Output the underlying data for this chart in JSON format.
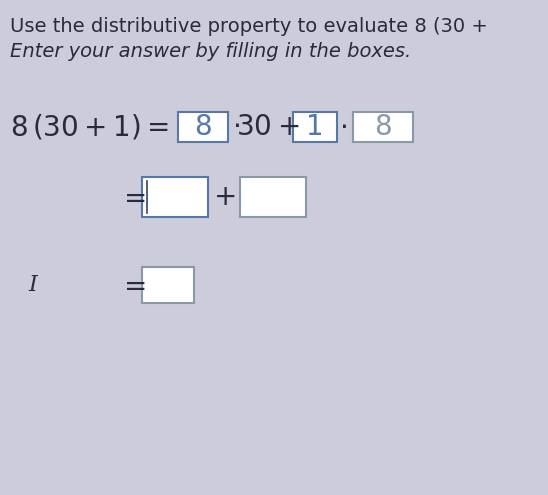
{
  "bg_color": "#d0d0d6",
  "content_bg": "#e8e8ee",
  "text_color": "#2a2a3e",
  "box_color_blue": "#5577aa",
  "box_color_gray": "#8899aa",
  "line1": "Use the distributive property to evaluate 8 (30 +",
  "line2": "Enter your answer by filling in the boxes.",
  "box1_val": "8",
  "box2_val": "1",
  "box3_val": "8",
  "cursor_char": "I",
  "font_size_title": 14,
  "font_size_eq": 20
}
